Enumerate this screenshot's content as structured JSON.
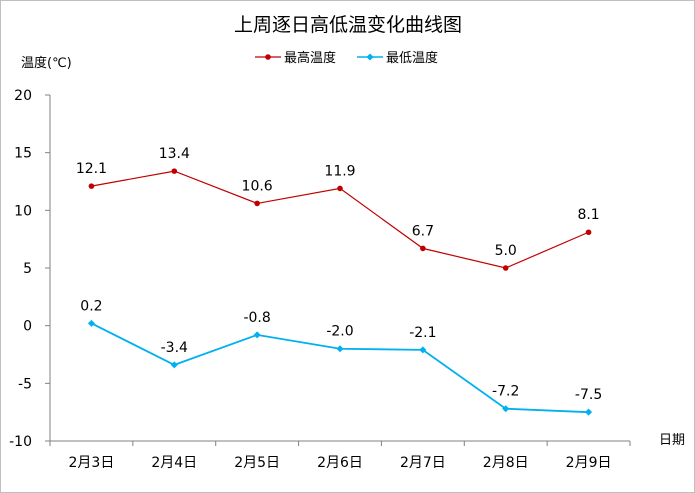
{
  "chart_data": {
    "type": "line",
    "title": "上周逐日高低温变化曲线图",
    "ylabel": "温度(℃)",
    "xlabel": "日期",
    "categories": [
      "2月3日",
      "2月4日",
      "2月5日",
      "2月6日",
      "2月7日",
      "2月8日",
      "2月9日"
    ],
    "ylim": [
      -10,
      20
    ],
    "yticks": [
      -10,
      -5,
      0,
      5,
      10,
      15,
      20
    ],
    "ytick_labels": [
      "-10",
      "-5",
      "0",
      "5",
      "10",
      "15",
      "20"
    ],
    "grid": false,
    "legend_position": "top-center",
    "series": [
      {
        "name": "最高温度",
        "color": "#c00000",
        "marker": "circle",
        "values": [
          12.1,
          13.4,
          10.6,
          11.9,
          6.7,
          5.0,
          8.1
        ],
        "labels": [
          "12.1",
          "13.4",
          "10.6",
          "11.9",
          "6.7",
          "5.0",
          "8.1"
        ]
      },
      {
        "name": "最低温度",
        "color": "#00b0f0",
        "marker": "diamond",
        "values": [
          0.2,
          -3.4,
          -0.8,
          -2.0,
          -2.1,
          -7.2,
          -7.5
        ],
        "labels": [
          "0.2",
          "-3.4",
          "-0.8",
          "-2.0",
          "-2.1",
          "-7.2",
          "-7.5"
        ]
      }
    ]
  }
}
